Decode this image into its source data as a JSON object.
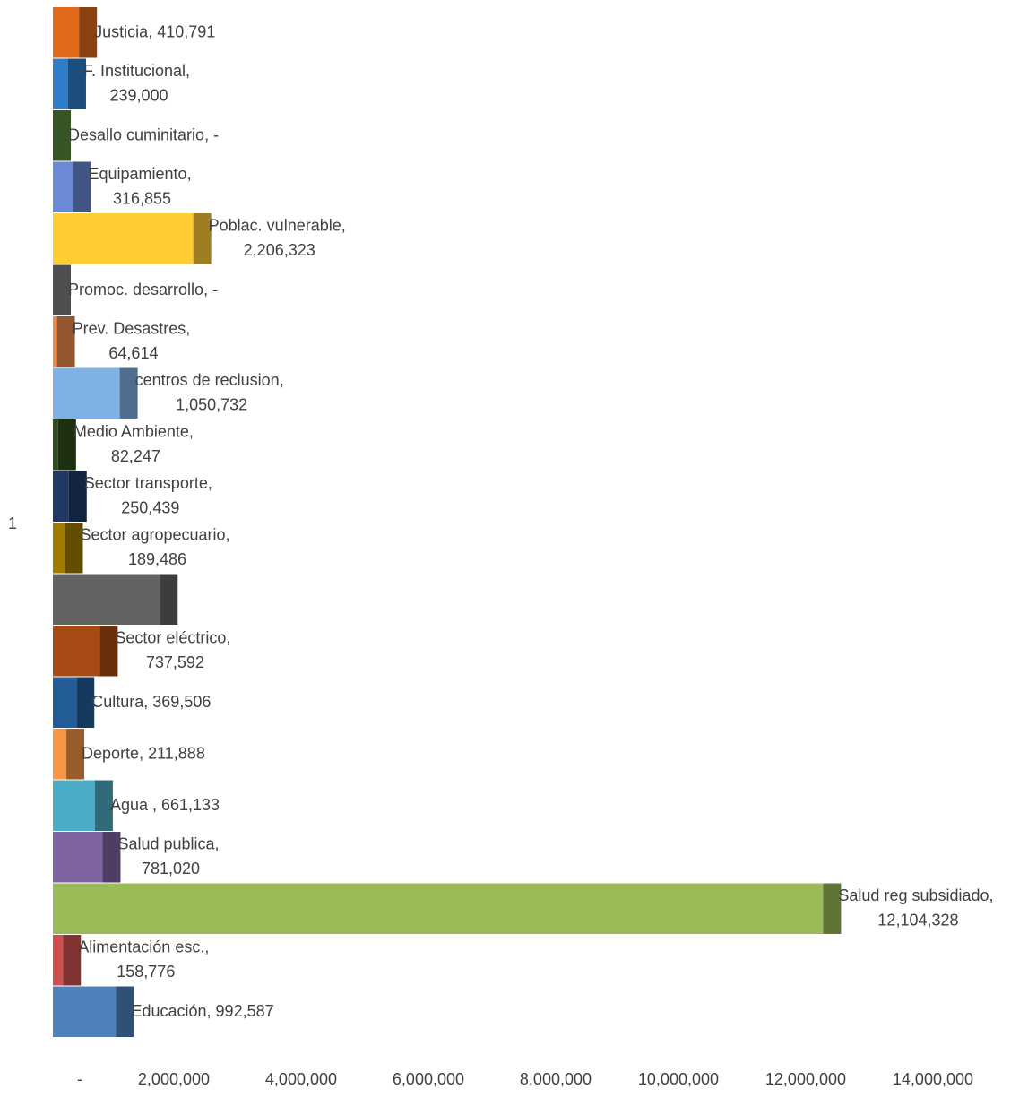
{
  "chart_data": {
    "type": "bar",
    "orientation": "horizontal",
    "category_axis_label": "1",
    "separator": ", ",
    "categories": [
      "Justicia",
      "F. Institucional",
      "Desallo cuminitario",
      "Equipamiento",
      "Poblac. vulnerable",
      "Promoc. desarrollo",
      "Prev. Desastres",
      "centros de reclusion",
      "Medio Ambiente",
      "Sector transporte",
      "Sector agropecuario",
      null,
      "Sector eléctrico",
      "Cultura",
      "Deporte",
      "Agua ",
      "Salud publica",
      "Salud reg subsidiado",
      "Alimentación esc.",
      "Educación"
    ],
    "values": [
      410791,
      239000,
      0,
      316855,
      2206323,
      0,
      64614,
      1050732,
      82247,
      250439,
      189486,
      1680000,
      737592,
      369506,
      211888,
      661133,
      781020,
      12104328,
      158776,
      992587
    ],
    "value_labels": [
      "410,791",
      "239,000",
      "-",
      "316,855",
      "2,206,323",
      "-",
      "64,614",
      "1,050,732",
      "82,247",
      "250,439",
      "189,486",
      null,
      "737,592",
      "369,506",
      "211,888",
      "661,133",
      "781,020",
      "12,104,328",
      "158,776",
      "992,587"
    ],
    "colors": [
      "#e0691a",
      "#2f7cc8",
      "#5b8a3c",
      "#6a8ad6",
      "#ffcc33",
      "#7f7f7f",
      "#f08a4b",
      "#7fb1e3",
      "#2e4d1c",
      "#203864",
      "#9e7c00",
      "#636363",
      "#a64b14",
      "#245d96",
      "#f79646",
      "#4bacc6",
      "#8064a2",
      "#9bbb59",
      "#d05050",
      "#4f81bd"
    ],
    "xlim": [
      0,
      14000000
    ],
    "xticks": [
      {
        "value": 0,
        "label": "-"
      },
      {
        "value": 2000000,
        "label": "2,000,000"
      },
      {
        "value": 4000000,
        "label": "4,000,000"
      },
      {
        "value": 6000000,
        "label": "6,000,000"
      },
      {
        "value": 8000000,
        "label": "8,000,000"
      },
      {
        "value": 10000000,
        "label": "10,000,000"
      },
      {
        "value": 12000000,
        "label": "12,000,000"
      },
      {
        "value": 14000000,
        "label": "14,000,000"
      }
    ],
    "grid": false
  }
}
